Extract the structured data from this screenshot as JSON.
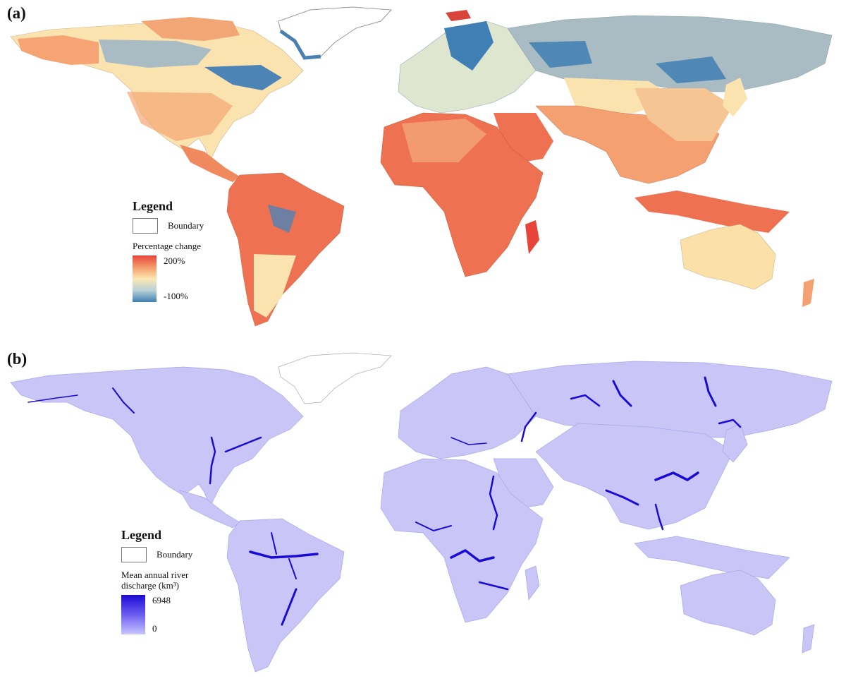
{
  "panel_a": {
    "label": "(a)",
    "legend": {
      "title": "Legend",
      "boundary_label": "Boundary",
      "scale_title": "Percentage change",
      "max_label": "200%",
      "min_label": "-100%"
    },
    "colors": {
      "high": "#e8453a",
      "mid_high": "#f39a6a",
      "neutral": "#fbe7b2",
      "mid_low": "#b9d2d8",
      "low": "#3f7fb3",
      "grey_region": "#a9bcc3"
    }
  },
  "panel_b": {
    "label": "(b)",
    "legend": {
      "title": "Legend",
      "boundary_label": "Boundary",
      "scale_title_line1": "Mean annual river",
      "scale_title_line2": "discharge (km³)",
      "max_label": "6948",
      "min_label": "0"
    },
    "colors": {
      "land": "#c9c6f7",
      "river": "#1a0ad6",
      "border": "#a9a6e6"
    }
  }
}
